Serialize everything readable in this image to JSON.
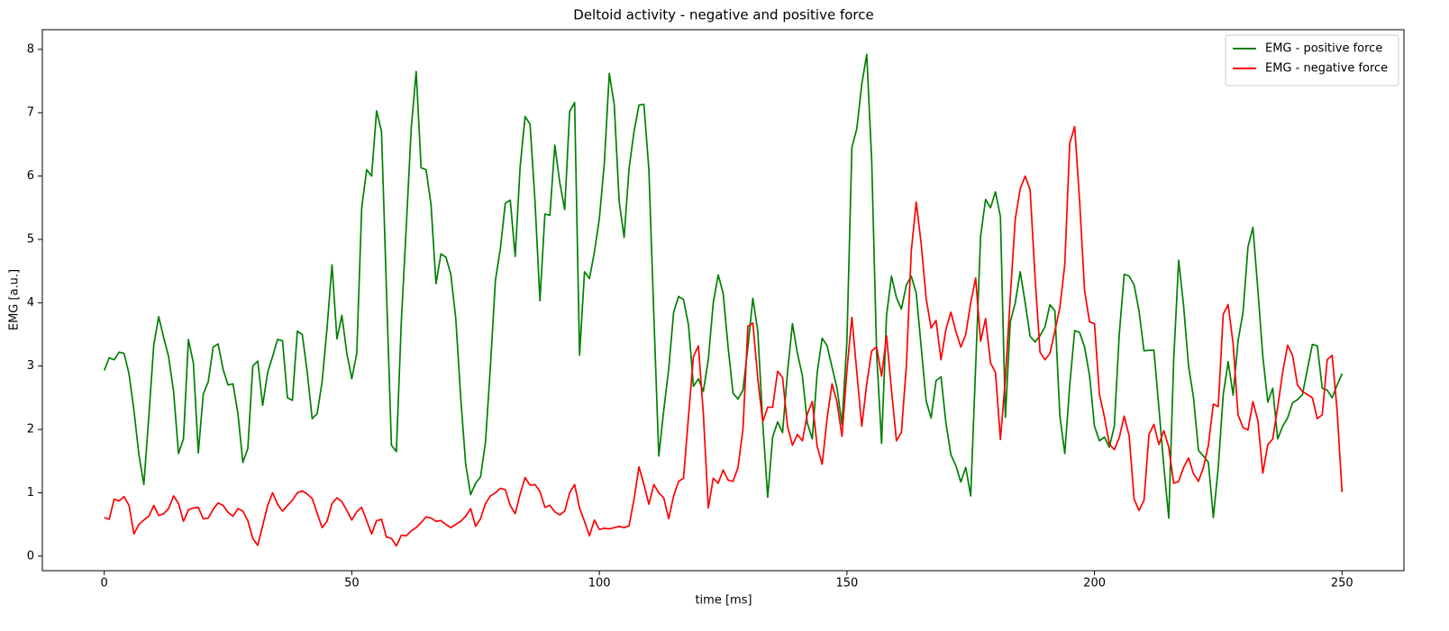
{
  "chart_data": {
    "type": "line",
    "title": "Deltoid activity - negative and positive force",
    "xlabel": "time [ms]",
    "ylabel": "EMG [a.u.]",
    "legend": "upper right",
    "grid": false,
    "xlim": [
      -12.5,
      262.5
    ],
    "ylim": [
      -0.23,
      8.31
    ],
    "xticks": [
      0,
      50,
      100,
      150,
      200,
      250
    ],
    "yticks": [
      0,
      1,
      2,
      3,
      4,
      5,
      6,
      7,
      8
    ],
    "x": [
      0,
      1,
      2,
      3,
      4,
      5,
      6,
      7,
      8,
      9,
      10,
      11,
      12,
      13,
      14,
      15,
      16,
      17,
      18,
      19,
      20,
      21,
      22,
      23,
      24,
      25,
      26,
      27,
      28,
      29,
      30,
      31,
      32,
      33,
      34,
      35,
      36,
      37,
      38,
      39,
      40,
      41,
      42,
      43,
      44,
      45,
      46,
      47,
      48,
      49,
      50,
      51,
      52,
      53,
      54,
      55,
      56,
      57,
      58,
      59,
      60,
      61,
      62,
      63,
      64,
      65,
      66,
      67,
      68,
      69,
      70,
      71,
      72,
      73,
      74,
      75,
      76,
      77,
      78,
      79,
      80,
      81,
      82,
      83,
      84,
      85,
      86,
      87,
      88,
      89,
      90,
      91,
      92,
      93,
      94,
      95,
      96,
      97,
      98,
      99,
      100,
      101,
      102,
      103,
      104,
      105,
      106,
      107,
      108,
      109,
      110,
      111,
      112,
      113,
      114,
      115,
      116,
      117,
      118,
      119,
      120,
      121,
      122,
      123,
      124,
      125,
      126,
      127,
      128,
      129,
      130,
      131,
      132,
      133,
      134,
      135,
      136,
      137,
      138,
      139,
      140,
      141,
      142,
      143,
      144,
      145,
      146,
      147,
      148,
      149,
      150,
      151,
      152,
      153,
      154,
      155,
      156,
      157,
      158,
      159,
      160,
      161,
      162,
      163,
      164,
      165,
      166,
      167,
      168,
      169,
      170,
      171,
      172,
      173,
      174,
      175,
      176,
      177,
      178,
      179,
      180,
      181,
      182,
      183,
      184,
      185,
      186,
      187,
      188,
      189,
      190,
      191,
      192,
      193,
      194,
      195,
      196,
      197,
      198,
      199,
      200,
      201,
      202,
      203,
      204,
      205,
      206,
      207,
      208,
      209,
      210,
      211,
      212,
      213,
      214,
      215,
      216,
      217,
      218,
      219,
      220,
      221,
      222,
      223,
      224,
      225,
      226,
      227,
      228,
      229,
      230,
      231,
      232,
      233,
      234,
      235,
      236,
      237,
      238,
      239,
      240,
      241,
      242,
      243,
      244,
      245,
      246,
      247,
      248,
      249,
      250
    ],
    "series": [
      {
        "name": "EMG - positive force",
        "color": "#008000",
        "values": [
          2.93,
          3.13,
          3.1,
          3.22,
          3.2,
          2.88,
          2.3,
          1.6,
          1.13,
          2.2,
          3.33,
          3.78,
          3.45,
          3.15,
          2.6,
          1.62,
          1.85,
          3.42,
          3.05,
          1.63,
          2.56,
          2.75,
          3.3,
          3.35,
          2.95,
          2.7,
          2.72,
          2.25,
          1.48,
          1.7,
          3.0,
          3.08,
          2.38,
          2.9,
          3.15,
          3.42,
          3.4,
          2.5,
          2.46,
          3.55,
          3.5,
          2.9,
          2.17,
          2.25,
          2.75,
          3.6,
          4.6,
          3.43,
          3.8,
          3.2,
          2.8,
          3.2,
          5.5,
          6.1,
          6.0,
          7.03,
          6.7,
          4.2,
          1.75,
          1.65,
          3.7,
          5.2,
          6.75,
          7.65,
          6.13,
          6.1,
          5.55,
          4.3,
          4.77,
          4.72,
          4.45,
          3.75,
          2.5,
          1.45,
          0.97,
          1.15,
          1.25,
          1.8,
          3.0,
          4.35,
          4.85,
          5.57,
          5.62,
          4.73,
          6.15,
          6.94,
          6.82,
          5.6,
          4.03,
          5.4,
          5.38,
          6.49,
          5.9,
          5.47,
          7.02,
          7.16,
          3.17,
          4.49,
          4.38,
          4.8,
          5.33,
          6.2,
          7.62,
          7.13,
          5.6,
          5.03,
          6.12,
          6.7,
          7.12,
          7.13,
          6.1,
          3.8,
          1.58,
          2.3,
          2.95,
          3.85,
          4.1,
          4.05,
          3.65,
          2.68,
          2.8,
          2.6,
          3.1,
          4.0,
          4.44,
          4.15,
          3.3,
          2.57,
          2.48,
          2.62,
          3.3,
          4.07,
          3.55,
          2.1,
          0.93,
          1.88,
          2.12,
          1.95,
          2.9,
          3.67,
          3.2,
          2.85,
          2.1,
          1.85,
          2.9,
          3.44,
          3.32,
          2.98,
          2.65,
          2.08,
          3.4,
          6.45,
          6.75,
          7.45,
          7.92,
          6.25,
          3.2,
          1.78,
          3.8,
          4.42,
          4.08,
          3.9,
          4.28,
          4.42,
          4.15,
          3.3,
          2.45,
          2.18,
          2.77,
          2.83,
          2.1,
          1.6,
          1.43,
          1.17,
          1.4,
          0.95,
          3.0,
          5.05,
          5.63,
          5.5,
          5.75,
          5.36,
          2.19,
          3.7,
          4.0,
          4.49,
          4.0,
          3.47,
          3.38,
          3.48,
          3.62,
          3.97,
          3.87,
          2.22,
          1.62,
          2.7,
          3.56,
          3.53,
          3.3,
          2.85,
          2.05,
          1.82,
          1.88,
          1.72,
          2.05,
          3.5,
          4.45,
          4.42,
          4.28,
          3.87,
          3.24,
          3.25,
          3.25,
          2.35,
          1.42,
          0.6,
          3.1,
          4.67,
          3.95,
          3.0,
          2.5,
          1.67,
          1.58,
          1.48,
          0.61,
          1.4,
          2.55,
          3.07,
          2.54,
          3.4,
          3.85,
          4.88,
          5.19,
          4.2,
          3.15,
          2.43,
          2.65,
          1.85,
          2.05,
          2.18,
          2.42,
          2.47,
          2.55,
          2.95,
          3.34,
          3.32,
          2.65,
          2.62,
          2.5,
          2.7,
          2.88
        ]
      },
      {
        "name": "EMG - negative force",
        "color": "#ff0000",
        "values": [
          0.61,
          0.58,
          0.9,
          0.87,
          0.94,
          0.8,
          0.35,
          0.5,
          0.57,
          0.63,
          0.8,
          0.64,
          0.67,
          0.75,
          0.95,
          0.83,
          0.55,
          0.73,
          0.76,
          0.77,
          0.59,
          0.6,
          0.74,
          0.84,
          0.8,
          0.69,
          0.63,
          0.75,
          0.71,
          0.56,
          0.28,
          0.17,
          0.48,
          0.8,
          1.0,
          0.82,
          0.71,
          0.8,
          0.88,
          1.0,
          1.03,
          0.98,
          0.91,
          0.68,
          0.45,
          0.55,
          0.83,
          0.92,
          0.86,
          0.72,
          0.57,
          0.7,
          0.77,
          0.56,
          0.35,
          0.56,
          0.58,
          0.3,
          0.28,
          0.16,
          0.33,
          0.32,
          0.4,
          0.45,
          0.53,
          0.62,
          0.6,
          0.55,
          0.56,
          0.5,
          0.45,
          0.5,
          0.55,
          0.63,
          0.75,
          0.47,
          0.59,
          0.83,
          0.95,
          1.0,
          1.07,
          1.05,
          0.8,
          0.67,
          0.98,
          1.24,
          1.12,
          1.13,
          1.02,
          0.77,
          0.8,
          0.7,
          0.65,
          0.71,
          1.0,
          1.13,
          0.76,
          0.55,
          0.32,
          0.57,
          0.42,
          0.44,
          0.43,
          0.45,
          0.47,
          0.45,
          0.48,
          0.9,
          1.41,
          1.13,
          0.82,
          1.13,
          1.0,
          0.92,
          0.59,
          0.95,
          1.18,
          1.23,
          2.2,
          3.15,
          3.32,
          2.25,
          0.76,
          1.23,
          1.15,
          1.36,
          1.2,
          1.18,
          1.4,
          2.0,
          3.63,
          3.68,
          2.8,
          2.12,
          2.35,
          2.35,
          2.92,
          2.82,
          2.05,
          1.75,
          1.92,
          1.82,
          2.24,
          2.44,
          1.73,
          1.45,
          2.18,
          2.72,
          2.43,
          1.89,
          2.93,
          3.77,
          2.9,
          2.05,
          2.72,
          3.24,
          3.3,
          2.84,
          3.48,
          2.62,
          1.82,
          1.95,
          3.0,
          4.82,
          5.59,
          4.93,
          4.07,
          3.6,
          3.72,
          3.1,
          3.58,
          3.85,
          3.55,
          3.3,
          3.5,
          4.0,
          4.39,
          3.39,
          3.75,
          3.05,
          2.9,
          1.84,
          2.8,
          4.1,
          5.32,
          5.8,
          6.0,
          5.78,
          4.4,
          3.22,
          3.1,
          3.2,
          3.55,
          3.92,
          4.6,
          6.52,
          6.78,
          5.6,
          4.19,
          3.7,
          3.67,
          2.55,
          2.2,
          1.77,
          1.68,
          1.87,
          2.21,
          1.9,
          0.9,
          0.72,
          0.88,
          1.92,
          2.08,
          1.76,
          1.98,
          1.72,
          1.15,
          1.18,
          1.4,
          1.55,
          1.3,
          1.18,
          1.4,
          1.75,
          2.4,
          2.36,
          3.82,
          3.97,
          3.35,
          2.23,
          2.03,
          1.99,
          2.44,
          2.14,
          1.31,
          1.76,
          1.85,
          2.35,
          2.9,
          3.33,
          3.17,
          2.7,
          2.6,
          2.55,
          2.5,
          2.17,
          2.23,
          3.1,
          3.17,
          2.3,
          1.01
        ]
      }
    ]
  }
}
